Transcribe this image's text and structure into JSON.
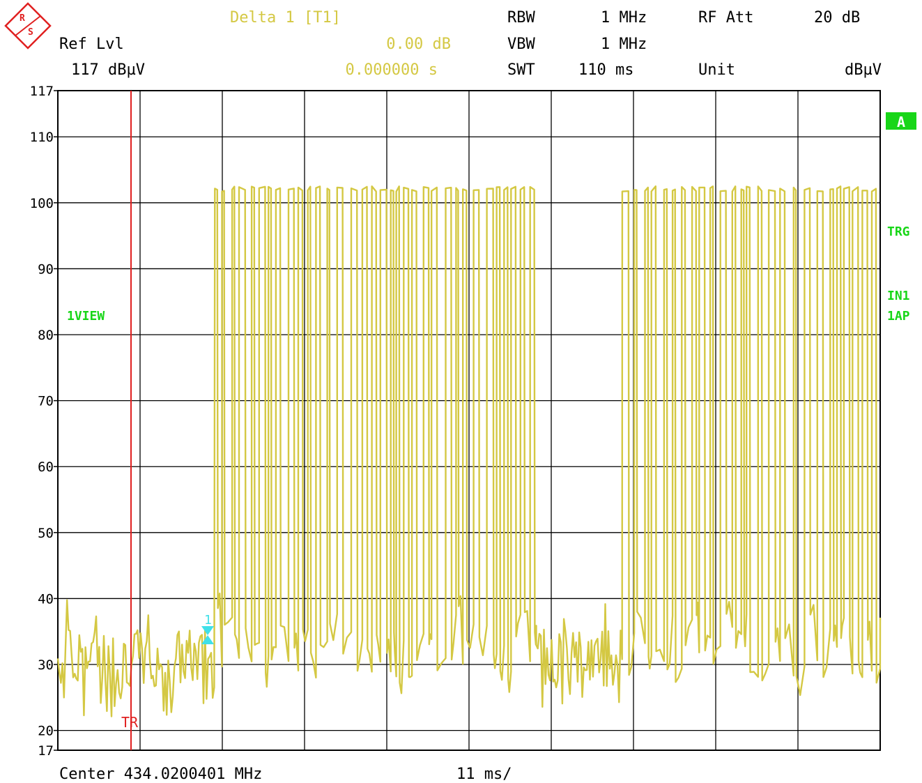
{
  "header": {
    "marker_title": "Delta 1 [T1]",
    "marker_level": "0.00 dB",
    "marker_time": "0.000000 s",
    "ref_level_label": "Ref Lvl",
    "ref_level_value": "117 dBµV",
    "rbw_label": "RBW",
    "rbw_value": "1 MHz",
    "vbw_label": "VBW",
    "vbw_value": "1 MHz",
    "swt_label": "SWT",
    "swt_value": "110 ms",
    "att_label": "RF Att",
    "att_value": "20 dB",
    "unit_label": "Unit",
    "unit_value": "dBµV"
  },
  "side_labels": {
    "trace_a": "A",
    "trigger": "TRG",
    "input": "IN1",
    "avg": "1AP",
    "view": "1VIEW",
    "trigger_marker": "TR",
    "marker_num": "1"
  },
  "footer": {
    "center": "Center 434.0200401 MHz",
    "span_per_div": "11 ms/"
  },
  "colors": {
    "trace": "#d4c843",
    "grid": "#000000",
    "trigger_line": "#e02020",
    "status_green": "#18d618",
    "marker": "#40e0e8",
    "logo": "#e02020",
    "header_yellow": "#d4c843"
  },
  "chart_data": {
    "type": "line",
    "ylabel": "dBµV",
    "ylim": [
      17,
      117
    ],
    "y_ticks": [
      117,
      110,
      100,
      90,
      80,
      70,
      60,
      50,
      40,
      30,
      20,
      17
    ],
    "x_unit": "ms",
    "xlim": [
      0,
      110
    ],
    "x_divisions": 10,
    "grid": true,
    "trigger_time_ms": 11,
    "marker": {
      "name": "1",
      "time_ms": 0,
      "level_dbuv": 34
    },
    "series": [
      {
        "values_description_free": true,
        "segments": [
          {
            "x_start_ms": 0,
            "x_end_ms": 21,
            "state": "noise",
            "min_dbuv": 22,
            "max_dbuv": 40
          },
          {
            "x_start_ms": 21,
            "x_end_ms": 64,
            "state": "burst",
            "high_dbuv": 102.5,
            "low_dbuv": 22
          },
          {
            "x_start_ms": 64,
            "x_end_ms": 75.5,
            "state": "noise",
            "min_dbuv": 23,
            "max_dbuv": 40
          },
          {
            "x_start_ms": 75.5,
            "x_end_ms": 110,
            "state": "burst",
            "high_dbuv": 102.5,
            "low_dbuv": 25
          }
        ]
      }
    ]
  }
}
